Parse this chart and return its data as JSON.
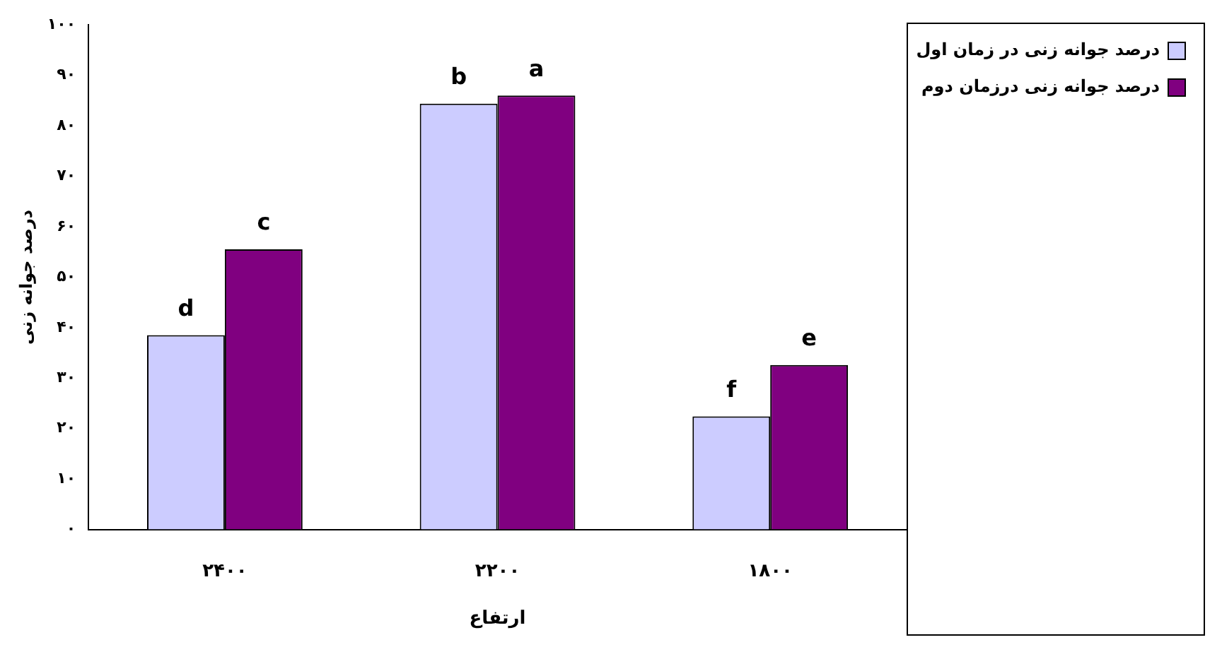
{
  "chart_data": {
    "type": "bar",
    "xlabel": "ارتفاع",
    "ylabel": "درصد جوانه زنی",
    "categories": [
      "۲۴۰۰",
      "۲۲۰۰",
      "۱۸۰۰"
    ],
    "series": [
      {
        "name": "درصد جوانه زنی در زمان اول",
        "color": "#ccccff",
        "values": [
          38.5,
          84.4,
          22.4
        ]
      },
      {
        "name": "درصد جوانه زنی درزمان دوم",
        "color": "#800080",
        "values": [
          55.5,
          86,
          32.6
        ]
      }
    ],
    "ylim": [
      0,
      100
    ],
    "yticks": [
      {
        "value": 0,
        "label": "۰"
      },
      {
        "value": 10,
        "label": "۱۰"
      },
      {
        "value": 20,
        "label": "۲۰"
      },
      {
        "value": 30,
        "label": "۳۰"
      },
      {
        "value": 40,
        "label": "۴۰"
      },
      {
        "value": 50,
        "label": "۵۰"
      },
      {
        "value": 60,
        "label": "۶۰"
      },
      {
        "value": 70,
        "label": "۷۰"
      },
      {
        "value": 80,
        "label": "۸۰"
      },
      {
        "value": 90,
        "label": "۹۰"
      },
      {
        "value": 100,
        "label": "۱۰۰"
      }
    ],
    "grid": false,
    "legend": "top right",
    "annotations": [
      {
        "text": "d",
        "x": "۲۴۰۰",
        "y": 38.5
      },
      {
        "text": "c",
        "x": "۲۴۰۰",
        "y": 55.5
      },
      {
        "text": "b",
        "x": "۲۲۰۰",
        "y": 84.4
      },
      {
        "text": "a",
        "x": "۲۲۰۰",
        "y": 86
      },
      {
        "text": "f",
        "x": "۱۸۰۰",
        "y": 22.4
      },
      {
        "text": "e",
        "x": "۱۸۰۰",
        "y": 32.6
      }
    ]
  }
}
